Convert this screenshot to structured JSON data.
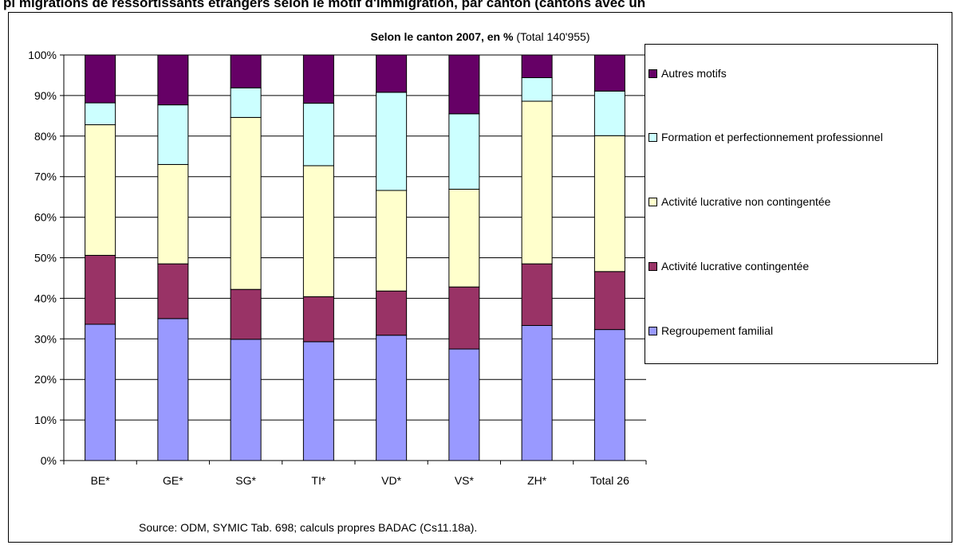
{
  "header_text": "pl                                          migrations de ressortissants étrangers selon le motif d'immigration, par canton (cantons avec un",
  "chart_data": {
    "type": "bar",
    "stacked": true,
    "title": "Selon le canton 2007, en %",
    "subtitle": "(Total 140'955)",
    "categories": [
      "BE*",
      "GE*",
      "SG*",
      "TI*",
      "VD*",
      "VS*",
      "ZH*",
      "Total 26"
    ],
    "ylim": [
      0,
      100
    ],
    "yticks": [
      "0%",
      "10%",
      "20%",
      "30%",
      "40%",
      "50%",
      "60%",
      "70%",
      "80%",
      "90%",
      "100%"
    ],
    "grid": true,
    "legend_position": "right",
    "series": [
      {
        "name": "Regroupement familial",
        "color": "#9999ff",
        "values": [
          33.6,
          35.0,
          29.9,
          29.3,
          30.9,
          27.5,
          33.3,
          32.3
        ]
      },
      {
        "name": "Activité lucrative contingentée",
        "color": "#993366",
        "values": [
          17.0,
          13.5,
          12.3,
          11.1,
          10.9,
          15.3,
          15.2,
          14.3
        ]
      },
      {
        "name": "Activité lucrative non contingentée",
        "color": "#ffffcc",
        "values": [
          32.2,
          24.5,
          42.4,
          32.3,
          24.8,
          24.1,
          40.1,
          33.5
        ]
      },
      {
        "name": "Formation et perfectionnement professionnel",
        "color": "#ccffff",
        "values": [
          5.4,
          14.7,
          7.3,
          15.4,
          24.2,
          18.6,
          5.8,
          11.0
        ]
      },
      {
        "name": "Autres motifs",
        "color": "#660066",
        "values": [
          11.8,
          12.3,
          8.1,
          11.9,
          9.2,
          14.5,
          5.6,
          8.9
        ]
      }
    ],
    "legend_order": [
      "Autres motifs",
      "Formation et perfectionnement professionnel",
      "Activité lucrative non contingentée",
      "Activité lucrative contingentée",
      "Regroupement familial"
    ]
  },
  "source_note": "Source: ODM, SYMIC Tab. 698; calculs propres BADAC (Cs11.18a)."
}
